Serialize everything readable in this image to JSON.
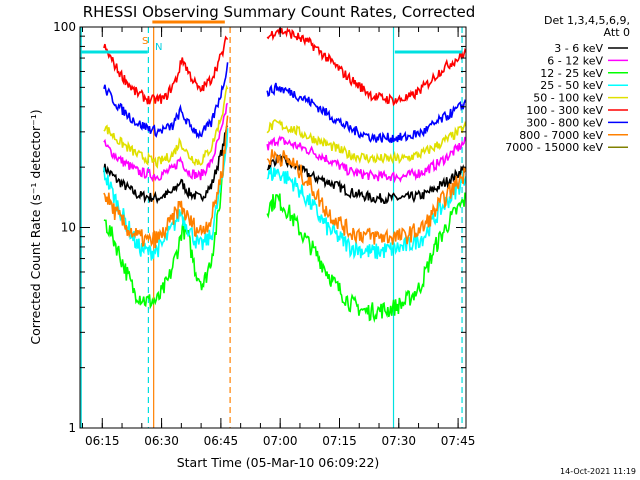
{
  "chart_data": {
    "type": "line",
    "title": "RHESSI Observing Summary Count Rates, Corrected",
    "xlabel": "Start Time (05-Mar-10 06:09:22)",
    "ylabel": "Corrected Count Rate (s⁻¹ detector⁻¹)",
    "y_scale": "log",
    "ylim": [
      1,
      100
    ],
    "xlim": [
      "06:09:22",
      "07:47:00"
    ],
    "x_ticks": [
      "06:15",
      "06:30",
      "06:45",
      "07:00",
      "07:15",
      "07:30",
      "07:45"
    ],
    "y_ticks": [
      "1",
      "10",
      "100"
    ],
    "grid": false,
    "legend_position": "right",
    "legend_header": [
      "Det 1,3,4,5,6,9,",
      "Att 0"
    ],
    "timestamp": "14-Oct-2021 11:19",
    "flags": [
      {
        "label": "S",
        "color": "#ff8000"
      },
      {
        "label": "N",
        "color": "#00d0e0"
      }
    ],
    "markers": [
      {
        "time": "06:09:40",
        "style": "solid",
        "color": "#00e0e0"
      },
      {
        "time": "06:26:40",
        "style": "dashed",
        "color": "#00e0e0"
      },
      {
        "time": "06:28:00",
        "style": "solid",
        "color": "#ff8000"
      },
      {
        "time": "06:47:20",
        "style": "dashed",
        "color": "#ff8000"
      },
      {
        "time": "07:28:40",
        "style": "solid",
        "color": "#00e0e0"
      },
      {
        "time": "07:46:00",
        "style": "dashed",
        "color": "#00e0e0"
      }
    ],
    "flag_bars": [
      {
        "label": "S",
        "color": "#ff8000",
        "start": "06:27:40",
        "end": "06:46:00",
        "level": 75
      },
      {
        "label": "N",
        "color": "#00e0e0",
        "start": "06:09:40",
        "end": "06:26:30",
        "level": 75
      },
      {
        "label": "N",
        "color": "#00e0e0",
        "start": "07:29:00",
        "end": "07:46:00",
        "level": 75
      }
    ],
    "series": [
      {
        "name": "3 - 6 keV",
        "color": "#000000",
        "values": [
          [
            6.2,
            20
          ],
          [
            10,
            17
          ],
          [
            15,
            14.5
          ],
          [
            20,
            14
          ],
          [
            24,
            15
          ],
          [
            26,
            17
          ],
          [
            28,
            15
          ],
          [
            31,
            14
          ],
          [
            34,
            16
          ],
          [
            37,
            25
          ],
          [
            38.5,
            35
          ],
          [
            48.5,
            20
          ],
          [
            51,
            22
          ],
          [
            55,
            20.5
          ],
          [
            60,
            18
          ],
          [
            64,
            17
          ],
          [
            70,
            15
          ],
          [
            76,
            14
          ],
          [
            84,
            14
          ],
          [
            89,
            14.5
          ],
          [
            93,
            16
          ],
          [
            97,
            18
          ],
          [
            100,
            20
          ]
        ]
      },
      {
        "name": "6 - 12 keV",
        "color": "#ff00ff",
        "values": [
          [
            6.2,
            26
          ],
          [
            10,
            22
          ],
          [
            15,
            19
          ],
          [
            20,
            18
          ],
          [
            24,
            19.5
          ],
          [
            26,
            22
          ],
          [
            28,
            19
          ],
          [
            31,
            18
          ],
          [
            34,
            21
          ],
          [
            37,
            32
          ],
          [
            38.5,
            45
          ],
          [
            48.5,
            25
          ],
          [
            51,
            27.5
          ],
          [
            55,
            26
          ],
          [
            60,
            24
          ],
          [
            64,
            22
          ],
          [
            70,
            19
          ],
          [
            76,
            18
          ],
          [
            84,
            18
          ],
          [
            89,
            19
          ],
          [
            93,
            21
          ],
          [
            97,
            24
          ],
          [
            100,
            27
          ]
        ]
      },
      {
        "name": "12 - 25 keV",
        "color": "#00ff00",
        "values": [
          [
            6.2,
            11
          ],
          [
            9,
            8.5
          ],
          [
            12,
            6
          ],
          [
            14,
            4.8
          ],
          [
            17,
            4.3
          ],
          [
            20,
            4.3
          ],
          [
            23,
            5.5
          ],
          [
            25.5,
            8
          ],
          [
            26.5,
            10
          ],
          [
            28,
            9
          ],
          [
            30,
            6
          ],
          [
            32,
            5.2
          ],
          [
            34,
            7
          ],
          [
            36,
            12
          ],
          [
            38,
            30
          ],
          [
            39,
            50
          ],
          [
            48.5,
            12.5
          ],
          [
            51,
            14
          ],
          [
            54,
            12
          ],
          [
            58,
            9
          ],
          [
            62,
            7
          ],
          [
            66,
            5.2
          ],
          [
            70,
            4.2
          ],
          [
            74,
            3.8
          ],
          [
            80,
            3.9
          ],
          [
            84,
            4.2
          ],
          [
            88,
            5
          ],
          [
            92,
            8
          ],
          [
            96,
            11
          ],
          [
            100,
            14
          ]
        ]
      },
      {
        "name": "25 - 50 keV",
        "color": "#00ffff",
        "values": [
          [
            6.2,
            19
          ],
          [
            9,
            14
          ],
          [
            12,
            10.5
          ],
          [
            15,
            8
          ],
          [
            18,
            7.5
          ],
          [
            21,
            8
          ],
          [
            24,
            10
          ],
          [
            26,
            12
          ],
          [
            28,
            10
          ],
          [
            31,
            8
          ],
          [
            34,
            9
          ],
          [
            37,
            18
          ],
          [
            38.5,
            35
          ],
          [
            48.5,
            18
          ],
          [
            51,
            19
          ],
          [
            55,
            17
          ],
          [
            60,
            13
          ],
          [
            64,
            10
          ],
          [
            70,
            8
          ],
          [
            76,
            7.5
          ],
          [
            84,
            8
          ],
          [
            89,
            9
          ],
          [
            93,
            12
          ],
          [
            97,
            15
          ],
          [
            100,
            18
          ]
        ]
      },
      {
        "name": "50 - 100 keV",
        "color": "#e0e000",
        "values": [
          [
            6.2,
            32
          ],
          [
            10,
            27
          ],
          [
            15,
            23
          ],
          [
            20,
            21
          ],
          [
            24,
            23
          ],
          [
            26,
            27
          ],
          [
            28,
            23
          ],
          [
            31,
            21
          ],
          [
            34,
            25
          ],
          [
            37,
            38
          ],
          [
            38.5,
            55
          ],
          [
            48.5,
            31
          ],
          [
            51,
            33
          ],
          [
            55,
            31
          ],
          [
            60,
            28
          ],
          [
            64,
            26
          ],
          [
            70,
            23
          ],
          [
            76,
            22
          ],
          [
            84,
            22
          ],
          [
            89,
            23.5
          ],
          [
            93,
            26
          ],
          [
            97,
            29
          ],
          [
            100,
            32
          ]
        ]
      },
      {
        "name": "100 - 300 keV",
        "color": "#ff0000",
        "values": [
          [
            6.2,
            80
          ],
          [
            10,
            60
          ],
          [
            14,
            48
          ],
          [
            18,
            43
          ],
          [
            22,
            44
          ],
          [
            25,
            55
          ],
          [
            26.5,
            70
          ],
          [
            28,
            60
          ],
          [
            31,
            48
          ],
          [
            34,
            55
          ],
          [
            37,
            75
          ],
          [
            38.5,
            95
          ],
          [
            48.5,
            88
          ],
          [
            51,
            97
          ],
          [
            55,
            92
          ],
          [
            60,
            82
          ],
          [
            64,
            70
          ],
          [
            70,
            55
          ],
          [
            76,
            45
          ],
          [
            82,
            43
          ],
          [
            86,
            45
          ],
          [
            90,
            52
          ],
          [
            94,
            62
          ],
          [
            98,
            70
          ],
          [
            100,
            75
          ]
        ]
      },
      {
        "name": "300 - 800 keV",
        "color": "#0000ff",
        "values": [
          [
            6.2,
            50
          ],
          [
            10,
            40
          ],
          [
            15,
            33
          ],
          [
            20,
            30
          ],
          [
            24,
            32
          ],
          [
            26,
            38
          ],
          [
            28,
            33
          ],
          [
            31,
            29
          ],
          [
            34,
            33
          ],
          [
            37,
            50
          ],
          [
            38.5,
            70
          ],
          [
            48.5,
            47
          ],
          [
            51,
            50
          ],
          [
            55,
            47
          ],
          [
            60,
            42
          ],
          [
            64,
            37
          ],
          [
            70,
            31
          ],
          [
            76,
            28
          ],
          [
            84,
            28
          ],
          [
            89,
            30
          ],
          [
            93,
            34
          ],
          [
            97,
            38
          ],
          [
            100,
            42
          ]
        ]
      },
      {
        "name": "800 - 7000 keV",
        "color": "#ff8000",
        "values": [
          [
            6.2,
            15
          ],
          [
            9,
            12
          ],
          [
            12,
            10
          ],
          [
            15,
            9
          ],
          [
            18,
            8.5
          ],
          [
            21,
            9
          ],
          [
            24,
            11
          ],
          [
            26,
            13
          ],
          [
            28,
            11
          ],
          [
            31,
            9.5
          ],
          [
            34,
            11
          ],
          [
            37,
            20
          ],
          [
            38.5,
            40
          ],
          [
            48.5,
            22
          ],
          [
            51,
            23
          ],
          [
            55,
            21
          ],
          [
            60,
            16
          ],
          [
            64,
            12
          ],
          [
            70,
            9.5
          ],
          [
            76,
            9
          ],
          [
            84,
            9
          ],
          [
            89,
            10
          ],
          [
            93,
            13
          ],
          [
            97,
            16
          ],
          [
            100,
            19
          ]
        ]
      },
      {
        "name": "7000 - 15000 keV",
        "color": "#808000",
        "values": []
      }
    ]
  }
}
